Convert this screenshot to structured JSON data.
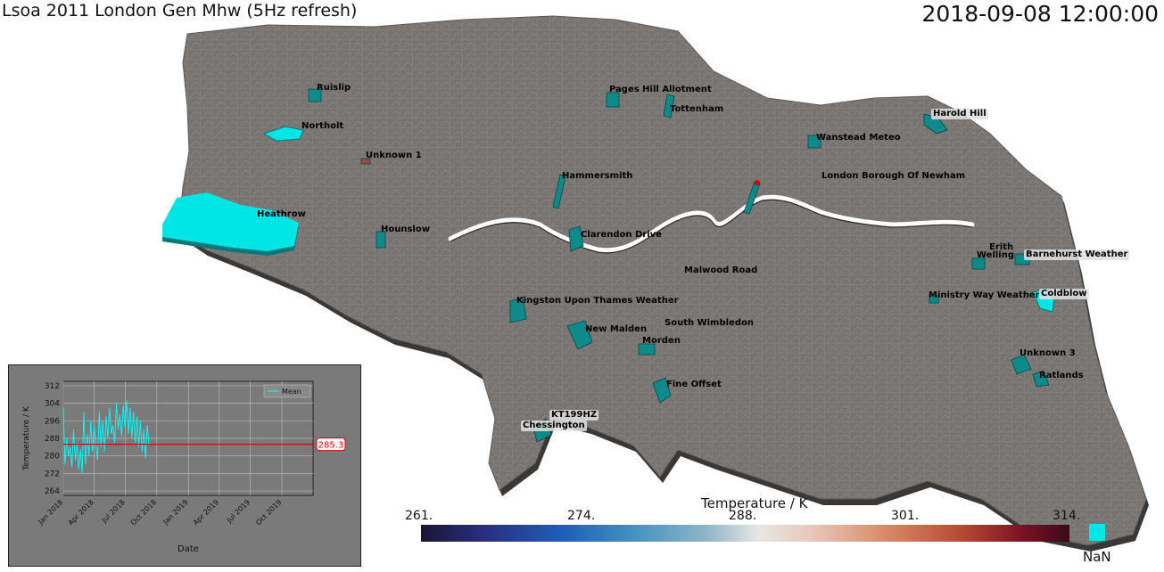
{
  "header": {
    "title": "Lsoa 2011 London Gen Mhw (5Hz refresh)",
    "timestamp": "2018-09-08 12:00:00"
  },
  "colors": {
    "map_fill": "#787471",
    "map_edge": "#3a3836",
    "station_fill": "#0e8a8a",
    "nan_color": "#00e5e5",
    "mean_line": "#00ffff",
    "marker_line": "#d40000"
  },
  "stations": [
    {
      "name": "Ruislip",
      "boxed": false
    },
    {
      "name": "Northolt",
      "boxed": false
    },
    {
      "name": "Unknown 1",
      "boxed": false
    },
    {
      "name": "Heathrow",
      "boxed": false
    },
    {
      "name": "Hounslow",
      "boxed": false
    },
    {
      "name": "Hammersmith",
      "boxed": false
    },
    {
      "name": "Pages Hill Allotment",
      "boxed": false
    },
    {
      "name": "Tottenham",
      "boxed": false
    },
    {
      "name": "Wanstead Meteo",
      "boxed": false
    },
    {
      "name": "Harold Hill",
      "boxed": true
    },
    {
      "name": "London Borough Of Newham",
      "boxed": false
    },
    {
      "name": "Clarendon Drive",
      "boxed": false
    },
    {
      "name": "Malwood Road",
      "boxed": false
    },
    {
      "name": "Kingston Upon Thames Weather",
      "boxed": false
    },
    {
      "name": "South Wimbledon",
      "boxed": false
    },
    {
      "name": "New Malden",
      "boxed": false
    },
    {
      "name": "Morden",
      "boxed": false
    },
    {
      "name": "Fine Offset",
      "boxed": false
    },
    {
      "name": "KT199HZ",
      "boxed": true
    },
    {
      "name": "Chessington",
      "boxed": true
    },
    {
      "name": "Erith",
      "boxed": false
    },
    {
      "name": "Welling",
      "boxed": false
    },
    {
      "name": "Barnehurst Weather",
      "boxed": true
    },
    {
      "name": "Ministry Way Weather",
      "boxed": false
    },
    {
      "name": "Coldblow",
      "boxed": true
    },
    {
      "name": "Unknown 3",
      "boxed": false
    },
    {
      "name": "Ratlands",
      "boxed": false
    }
  ],
  "colorbar": {
    "title": "Temperature / K",
    "ticks": [
      "261.",
      "274.",
      "288.",
      "301.",
      "314."
    ],
    "nan_label": "NaN"
  },
  "chart_data": {
    "type": "line",
    "xlabel": "Date",
    "ylabel": "Temperature / K",
    "ylim": [
      262,
      314
    ],
    "yticks": [
      264,
      272,
      280,
      288,
      296,
      304,
      312
    ],
    "xlim": [
      "2018-01-01",
      "2019-12-31"
    ],
    "xticks": [
      "Jan 2018",
      "Apr 2018",
      "Jul 2018",
      "Oct 2018",
      "Jan 2019",
      "Apr 2019",
      "Jul 2019",
      "Oct 2019"
    ],
    "grid": true,
    "legend": {
      "position": "top-right",
      "entries": [
        "Mean"
      ]
    },
    "current_value": 285.3,
    "current_value_label": "285.3",
    "series": [
      {
        "name": "Mean",
        "x": [
          "2018-01-01",
          "2018-01-06",
          "2018-01-11",
          "2018-01-16",
          "2018-01-21",
          "2018-01-26",
          "2018-01-31",
          "2018-02-05",
          "2018-02-10",
          "2018-02-15",
          "2018-02-20",
          "2018-02-25",
          "2018-03-02",
          "2018-03-07",
          "2018-03-12",
          "2018-03-17",
          "2018-03-22",
          "2018-03-27",
          "2018-04-01",
          "2018-04-06",
          "2018-04-11",
          "2018-04-16",
          "2018-04-21",
          "2018-04-26",
          "2018-05-01",
          "2018-05-06",
          "2018-05-11",
          "2018-05-16",
          "2018-05-21",
          "2018-05-26",
          "2018-05-31",
          "2018-06-05",
          "2018-06-10",
          "2018-06-15",
          "2018-06-20",
          "2018-06-25",
          "2018-06-30",
          "2018-07-05",
          "2018-07-10",
          "2018-07-15",
          "2018-07-20",
          "2018-07-25",
          "2018-07-30",
          "2018-08-04",
          "2018-08-09",
          "2018-08-14",
          "2018-08-19",
          "2018-08-24",
          "2018-08-29",
          "2018-09-03",
          "2018-09-08"
        ],
        "values": [
          302,
          276,
          288,
          280,
          284,
          275,
          292,
          278,
          286,
          274,
          283,
          272,
          300,
          276,
          290,
          280,
          296,
          282,
          294,
          285,
          278,
          300,
          284,
          296,
          282,
          298,
          288,
          302,
          290,
          294,
          286,
          304,
          292,
          299,
          289,
          303,
          293,
          305,
          290,
          302,
          288,
          300,
          286,
          298,
          284,
          296,
          282,
          292,
          279,
          294,
          285.3
        ]
      }
    ]
  }
}
